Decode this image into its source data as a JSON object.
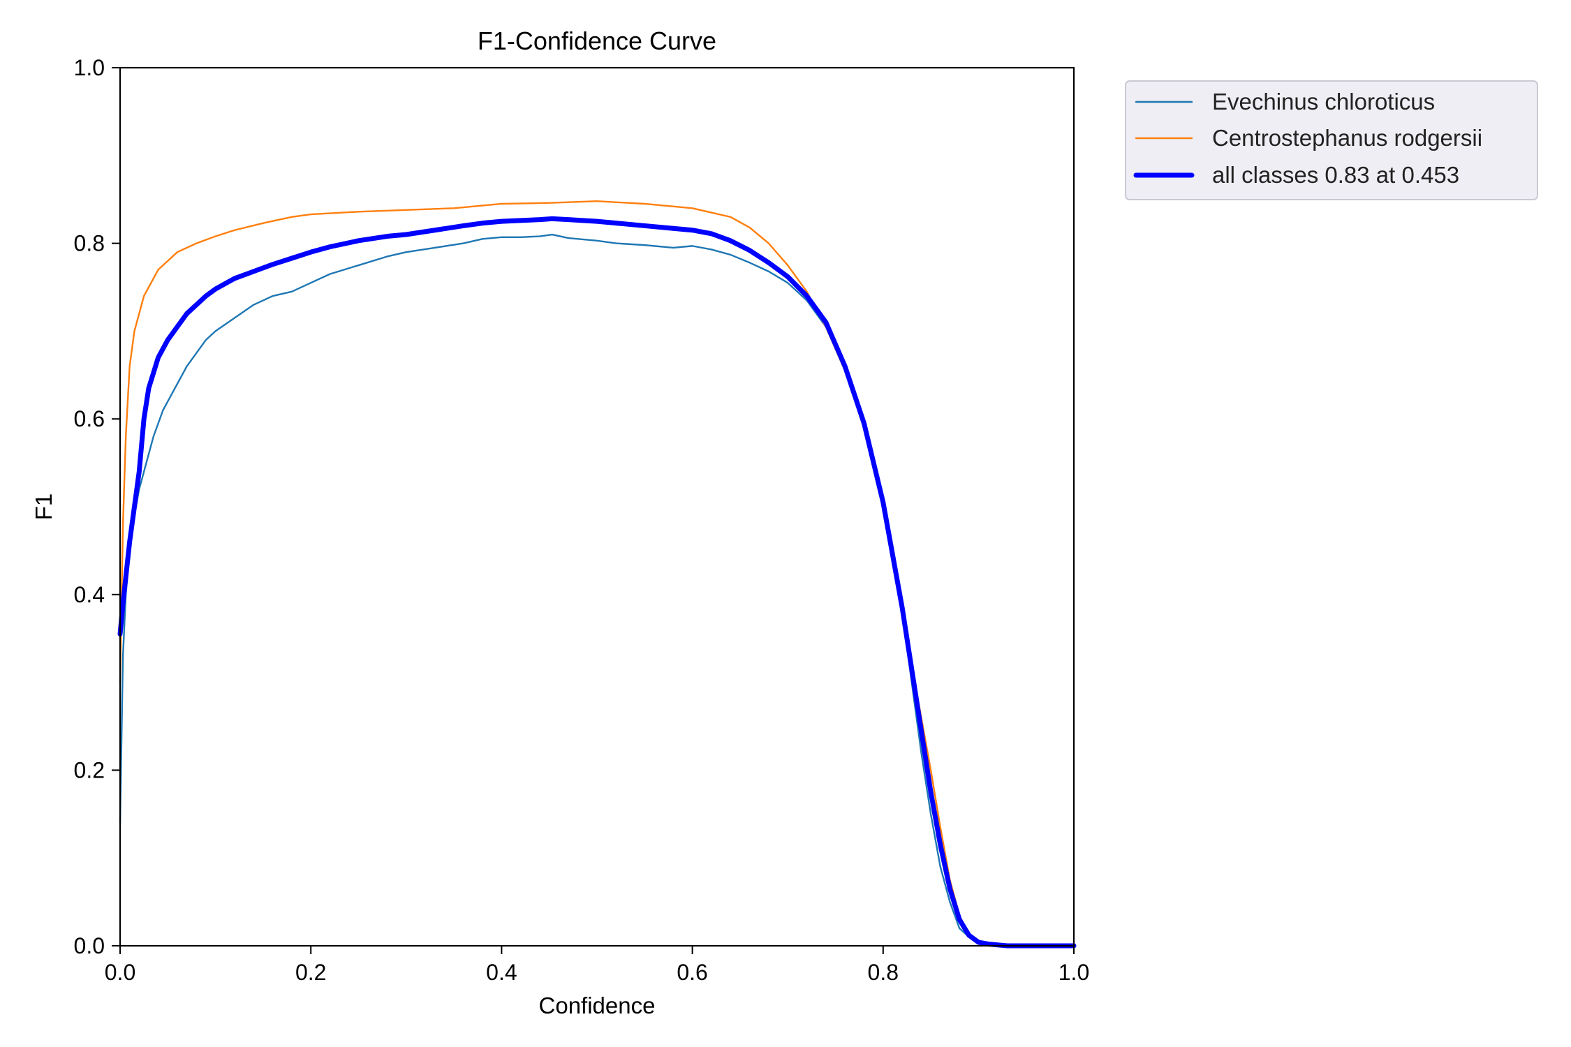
{
  "chart_data": {
    "type": "line",
    "title": "F1-Confidence Curve",
    "xlabel": "Confidence",
    "ylabel": "F1",
    "xlim": [
      0,
      1
    ],
    "ylim": [
      0,
      1
    ],
    "xticks": [
      "0.0",
      "0.2",
      "0.4",
      "0.6",
      "0.8",
      "1.0"
    ],
    "yticks": [
      "0.0",
      "0.2",
      "0.4",
      "0.6",
      "0.8",
      "1.0"
    ],
    "grid": false,
    "legend_position": "outside-top-right",
    "series": [
      {
        "name": "Evechinus chloroticus",
        "color": "#1f77b4",
        "x": [
          0,
          0.003,
          0.006,
          0.01,
          0.015,
          0.02,
          0.025,
          0.03,
          0.035,
          0.04,
          0.045,
          0.05,
          0.06,
          0.07,
          0.08,
          0.09,
          0.1,
          0.12,
          0.14,
          0.16,
          0.18,
          0.2,
          0.22,
          0.25,
          0.28,
          0.3,
          0.33,
          0.36,
          0.38,
          0.4,
          0.42,
          0.44,
          0.453,
          0.47,
          0.5,
          0.52,
          0.55,
          0.58,
          0.6,
          0.62,
          0.64,
          0.66,
          0.68,
          0.7,
          0.72,
          0.74,
          0.76,
          0.78,
          0.8,
          0.82,
          0.83,
          0.84,
          0.85,
          0.86,
          0.87,
          0.88,
          0.89,
          0.9,
          0.91,
          0.92,
          0.93,
          0.95,
          1.0
        ],
        "values": [
          0.14,
          0.33,
          0.4,
          0.45,
          0.49,
          0.52,
          0.54,
          0.56,
          0.58,
          0.595,
          0.61,
          0.62,
          0.64,
          0.66,
          0.675,
          0.69,
          0.7,
          0.715,
          0.73,
          0.74,
          0.745,
          0.755,
          0.765,
          0.775,
          0.785,
          0.79,
          0.795,
          0.8,
          0.805,
          0.807,
          0.807,
          0.808,
          0.81,
          0.806,
          0.803,
          0.8,
          0.798,
          0.795,
          0.797,
          0.793,
          0.787,
          0.778,
          0.768,
          0.755,
          0.735,
          0.705,
          0.655,
          0.59,
          0.5,
          0.38,
          0.3,
          0.22,
          0.15,
          0.09,
          0.05,
          0.02,
          0.01,
          0.005,
          0.002,
          0.001,
          0.0,
          0.0,
          0.0
        ]
      },
      {
        "name": "Centrostephanus rodgersii",
        "color": "#ff7f0e",
        "x": [
          0,
          0.003,
          0.006,
          0.01,
          0.015,
          0.02,
          0.025,
          0.03,
          0.04,
          0.05,
          0.06,
          0.07,
          0.08,
          0.1,
          0.12,
          0.15,
          0.18,
          0.2,
          0.25,
          0.3,
          0.35,
          0.4,
          0.45,
          0.5,
          0.55,
          0.6,
          0.62,
          0.64,
          0.66,
          0.68,
          0.7,
          0.72,
          0.74,
          0.76,
          0.78,
          0.8,
          0.82,
          0.83,
          0.84,
          0.85,
          0.86,
          0.87,
          0.88,
          0.89,
          0.9,
          0.91,
          0.92,
          0.93,
          0.95,
          1.0
        ],
        "values": [
          0.3,
          0.48,
          0.58,
          0.66,
          0.7,
          0.72,
          0.74,
          0.75,
          0.77,
          0.78,
          0.79,
          0.795,
          0.8,
          0.808,
          0.815,
          0.823,
          0.83,
          0.833,
          0.836,
          0.838,
          0.84,
          0.845,
          0.846,
          0.848,
          0.845,
          0.84,
          0.835,
          0.83,
          0.818,
          0.8,
          0.775,
          0.745,
          0.705,
          0.655,
          0.59,
          0.5,
          0.39,
          0.32,
          0.26,
          0.2,
          0.135,
          0.075,
          0.035,
          0.012,
          0.004,
          0.001,
          0.0,
          0.0,
          0.0,
          0.0
        ]
      },
      {
        "name": "all classes 0.83 at 0.453",
        "color": "#0000ff",
        "x": [
          0,
          0.003,
          0.006,
          0.01,
          0.015,
          0.02,
          0.025,
          0.03,
          0.04,
          0.05,
          0.06,
          0.07,
          0.08,
          0.09,
          0.1,
          0.12,
          0.14,
          0.16,
          0.18,
          0.2,
          0.22,
          0.25,
          0.28,
          0.3,
          0.33,
          0.36,
          0.38,
          0.4,
          0.42,
          0.44,
          0.453,
          0.47,
          0.5,
          0.52,
          0.55,
          0.58,
          0.6,
          0.62,
          0.64,
          0.66,
          0.68,
          0.7,
          0.72,
          0.74,
          0.76,
          0.78,
          0.8,
          0.82,
          0.83,
          0.84,
          0.85,
          0.86,
          0.87,
          0.88,
          0.89,
          0.9,
          0.91,
          0.92,
          0.93,
          0.95,
          1.0
        ],
        "values": [
          0.355,
          0.39,
          0.42,
          0.46,
          0.5,
          0.54,
          0.6,
          0.635,
          0.67,
          0.69,
          0.705,
          0.72,
          0.73,
          0.74,
          0.748,
          0.76,
          0.768,
          0.776,
          0.783,
          0.79,
          0.796,
          0.803,
          0.808,
          0.81,
          0.815,
          0.82,
          0.823,
          0.825,
          0.826,
          0.827,
          0.828,
          0.827,
          0.825,
          0.823,
          0.82,
          0.817,
          0.815,
          0.811,
          0.803,
          0.792,
          0.778,
          0.762,
          0.74,
          0.71,
          0.66,
          0.595,
          0.505,
          0.385,
          0.315,
          0.245,
          0.175,
          0.115,
          0.065,
          0.03,
          0.012,
          0.004,
          0.002,
          0.001,
          0.0,
          0.0,
          0.0
        ]
      }
    ]
  }
}
